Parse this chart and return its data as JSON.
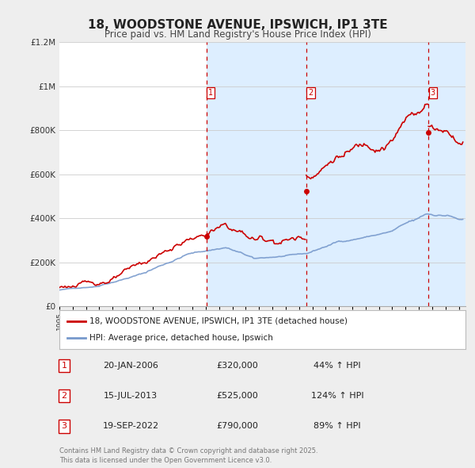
{
  "title": "18, WOODSTONE AVENUE, IPSWICH, IP1 3TE",
  "subtitle": "Price paid vs. HM Land Registry's House Price Index (HPI)",
  "bg_color": "#eeeeee",
  "plot_bg_color": "#ffffff",
  "red_color": "#cc0000",
  "blue_color": "#7799cc",
  "shaded_color": "#ddeeff",
  "ylim": [
    0,
    1200000
  ],
  "yticks": [
    0,
    200000,
    400000,
    600000,
    800000,
    1000000,
    1200000
  ],
  "ytick_labels": [
    "£0",
    "£200K",
    "£400K",
    "£600K",
    "£800K",
    "£1M",
    "£1.2M"
  ],
  "xmin": 1995.0,
  "xmax": 2025.5,
  "sales": [
    {
      "num": 1,
      "date": "20-JAN-2006",
      "price": 320000,
      "pct": "44%",
      "year": 2006.05
    },
    {
      "num": 2,
      "date": "15-JUL-2013",
      "price": 525000,
      "pct": "124%",
      "year": 2013.54
    },
    {
      "num": 3,
      "date": "19-SEP-2022",
      "price": 790000,
      "pct": "89%",
      "year": 2022.72
    }
  ],
  "legend_label_red": "18, WOODSTONE AVENUE, IPSWICH, IP1 3TE (detached house)",
  "legend_label_blue": "HPI: Average price, detached house, Ipswich",
  "footer": "Contains HM Land Registry data © Crown copyright and database right 2025.\nThis data is licensed under the Open Government Licence v3.0."
}
